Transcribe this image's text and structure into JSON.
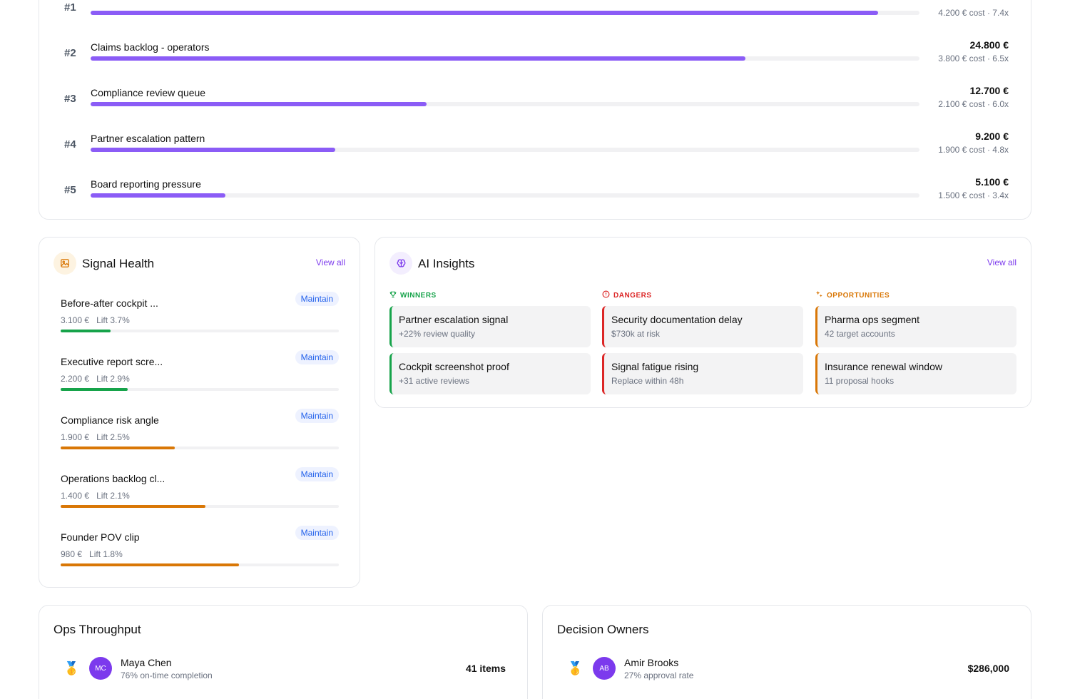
{
  "ranking": {
    "rows": [
      {
        "rank": "#1",
        "label": "",
        "amount": "",
        "meta": "4.200 € cost · 7.4x",
        "progress": 0.95
      },
      {
        "rank": "#2",
        "label": "Claims backlog - operators",
        "amount": "24.800 €",
        "meta": "3.800 € cost · 6.5x",
        "progress": 0.79
      },
      {
        "rank": "#3",
        "label": "Compliance review queue",
        "amount": "12.700 €",
        "meta": "2.100 € cost · 6.0x",
        "progress": 0.405
      },
      {
        "rank": "#4",
        "label": "Partner escalation pattern",
        "amount": "9.200 €",
        "meta": "1.900 € cost · 4.8x",
        "progress": 0.295
      },
      {
        "rank": "#5",
        "label": "Board reporting pressure",
        "amount": "5.100 €",
        "meta": "1.500 € cost · 3.4x",
        "progress": 0.163
      }
    ]
  },
  "signal_health": {
    "title": "Signal Health",
    "view_all": "View all",
    "items": [
      {
        "title": "Before-after cockpit ...",
        "badge": "Maintain",
        "amount": "3.100 €",
        "lift": "Lift 3.7%",
        "progress": 0.18,
        "color": "#16a34a"
      },
      {
        "title": "Executive report scre...",
        "badge": "Maintain",
        "amount": "2.200 €",
        "lift": "Lift 2.9%",
        "progress": 0.24,
        "color": "#16a34a"
      },
      {
        "title": "Compliance risk angle",
        "badge": "Maintain",
        "amount": "1.900 €",
        "lift": "Lift 2.5%",
        "progress": 0.41,
        "color": "#d97706"
      },
      {
        "title": "Operations backlog cl...",
        "badge": "Maintain",
        "amount": "1.400 €",
        "lift": "Lift 2.1%",
        "progress": 0.52,
        "color": "#d97706"
      },
      {
        "title": "Founder POV clip",
        "badge": "Maintain",
        "amount": "980 €",
        "lift": "Lift 1.8%",
        "progress": 0.64,
        "color": "#d97706"
      }
    ]
  },
  "ai_insights": {
    "title": "AI Insights",
    "view_all": "View all",
    "columns": [
      {
        "heading": "WINNERS",
        "icon": "trophy-icon",
        "color": "#16a34a",
        "tiles": [
          {
            "title": "Partner escalation signal",
            "sub": "+22% review quality"
          },
          {
            "title": "Cockpit screenshot proof",
            "sub": "+31 active reviews"
          }
        ]
      },
      {
        "heading": "DANGERS",
        "icon": "alert-circle-icon",
        "color": "#dc2626",
        "tiles": [
          {
            "title": "Security documentation delay",
            "sub": "$730k at risk"
          },
          {
            "title": "Signal fatigue rising",
            "sub": "Replace within 48h"
          }
        ]
      },
      {
        "heading": "OPPORTUNITIES",
        "icon": "sparkle-icon",
        "color": "#d97706",
        "tiles": [
          {
            "title": "Pharma ops segment",
            "sub": "42 target accounts"
          },
          {
            "title": "Insurance renewal window",
            "sub": "11 proposal hooks"
          }
        ]
      }
    ]
  },
  "ops_throughput": {
    "title": "Ops Throughput",
    "rows": [
      {
        "medal": "🥇",
        "initials": "MC",
        "name": "Maya Chen",
        "sub": "76% on-time completion",
        "value": "41 items"
      }
    ]
  },
  "decision_owners": {
    "title": "Decision Owners",
    "rows": [
      {
        "medal": "🥇",
        "initials": "AB",
        "name": "Amir Brooks",
        "sub": "27% approval rate",
        "value": "$286,000"
      }
    ]
  },
  "colors": {
    "accent": "#8b5cf6",
    "link": "#7c3aed",
    "badge_text": "#2563eb",
    "winners": "#16a34a",
    "dangers": "#dc2626",
    "opportunities": "#d97706"
  }
}
